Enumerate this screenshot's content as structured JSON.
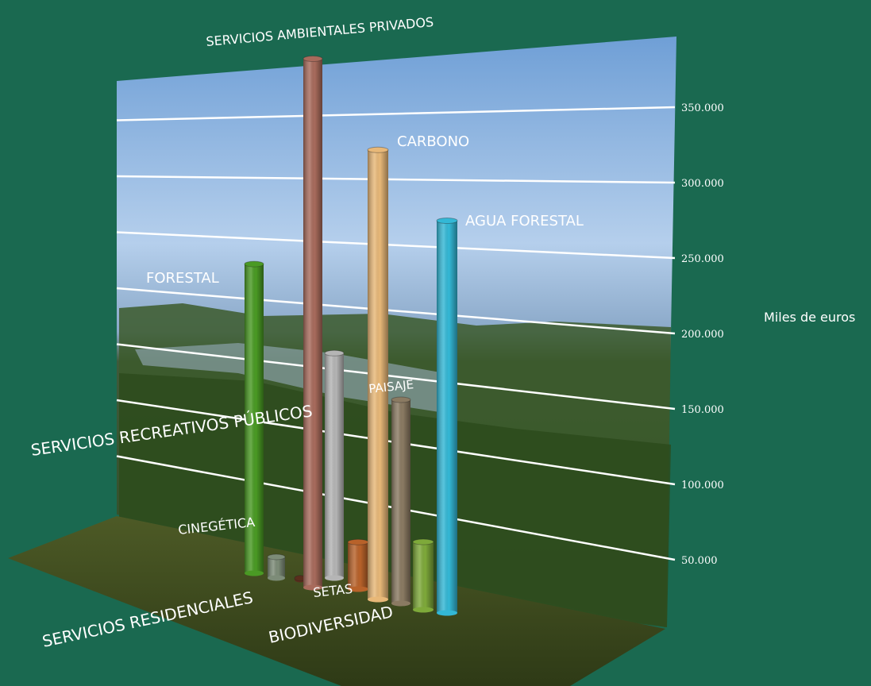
{
  "chart_data": {
    "type": "bar",
    "title": "",
    "xlabel": "",
    "ylabel": "Miles de euros",
    "ylim": [
      0,
      380000
    ],
    "yticks": [
      "50.000",
      "100.000",
      "150.000",
      "200.000",
      "250.000",
      "300.000",
      "350.000"
    ],
    "grid": true,
    "categories": [
      "FORESTAL",
      "CINEGÉTICA",
      "SERVICIOS RESIDENCIALES",
      "SERVICIOS AMBIENTALES PRIVADOS",
      "SERVICIOS RECREATIVOS PÚBLICOS",
      "SETAS",
      "CARBONO",
      "PAISAJE",
      "BIODIVERSIDAD",
      "AGUA FORESTAL"
    ],
    "values": [
      220000,
      15000,
      1000,
      360000,
      160000,
      32000,
      298000,
      135000,
      45000,
      260000
    ],
    "colors": [
      "#4a9a24",
      "#7d8c78",
      "#5a2e1c",
      "#a86b5c",
      "#b5b5b5",
      "#b8622a",
      "#e8b878",
      "#8a7a62",
      "#7ea93a",
      "#33b8d6"
    ]
  }
}
